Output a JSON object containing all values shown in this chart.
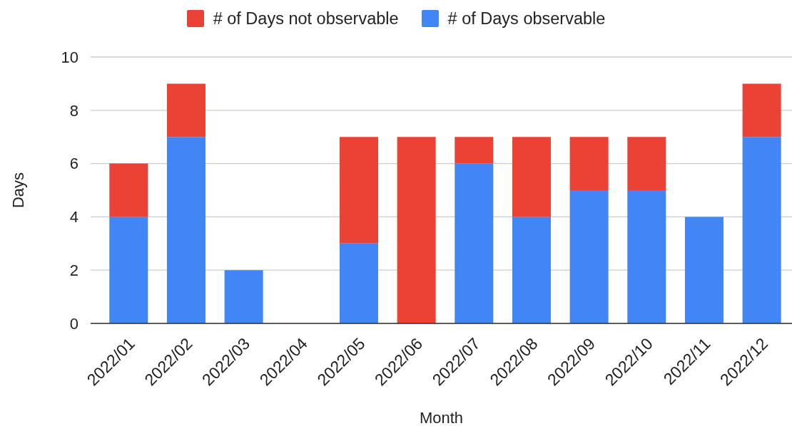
{
  "chart_data": {
    "type": "bar",
    "stacked": true,
    "legend": "top",
    "grid": "y",
    "xlabel": "Month",
    "ylabel": "Days",
    "categories": [
      "2022/01",
      "2022/02",
      "2022/03",
      "2022/04",
      "2022/05",
      "2022/06",
      "2022/07",
      "2022/08",
      "2022/09",
      "2022/10",
      "2022/11",
      "2022/12"
    ],
    "series": [
      {
        "name": "# of Days observable",
        "color": "#4285f4",
        "values": [
          4,
          7,
          2,
          0,
          3,
          0,
          6,
          4,
          5,
          5,
          4,
          7
        ]
      },
      {
        "name": "# of Days not observable",
        "color": "#ea4335",
        "values": [
          2,
          2,
          0,
          0,
          4,
          7,
          1,
          3,
          2,
          2,
          0,
          2
        ]
      }
    ],
    "ylim": [
      0,
      10
    ],
    "yticks": [
      0,
      2,
      4,
      6,
      8,
      10
    ]
  }
}
